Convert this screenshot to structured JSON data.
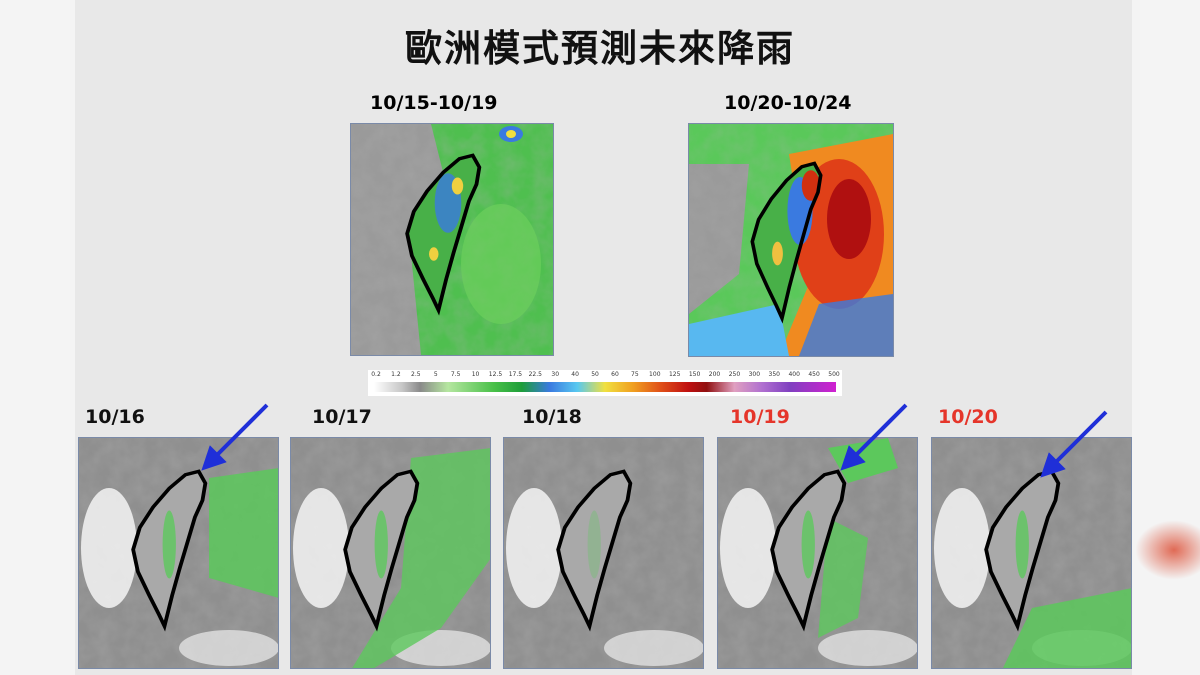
{
  "title": "歐洲模式預測未來降雨",
  "top_maps": [
    {
      "label": "10/15-10/19"
    },
    {
      "label": "10/20-10/24"
    }
  ],
  "color_scale": {
    "labels": [
      "0.2",
      "1.2",
      "2.5",
      "5",
      "7.5",
      "10",
      "12.5",
      "17.5",
      "22.5",
      "30",
      "40",
      "50",
      "60",
      "75",
      "100",
      "125",
      "150",
      "200",
      "250",
      "300",
      "350",
      "400",
      "450",
      "500"
    ]
  },
  "daily_maps": [
    {
      "label": "10/16",
      "label_color": "#111111"
    },
    {
      "label": "10/17",
      "label_color": "#111111"
    },
    {
      "label": "10/18",
      "label_color": "#111111"
    },
    {
      "label": "10/19",
      "label_color": "#e5352a"
    },
    {
      "label": "10/20",
      "label_color": "#e5352a"
    }
  ]
}
